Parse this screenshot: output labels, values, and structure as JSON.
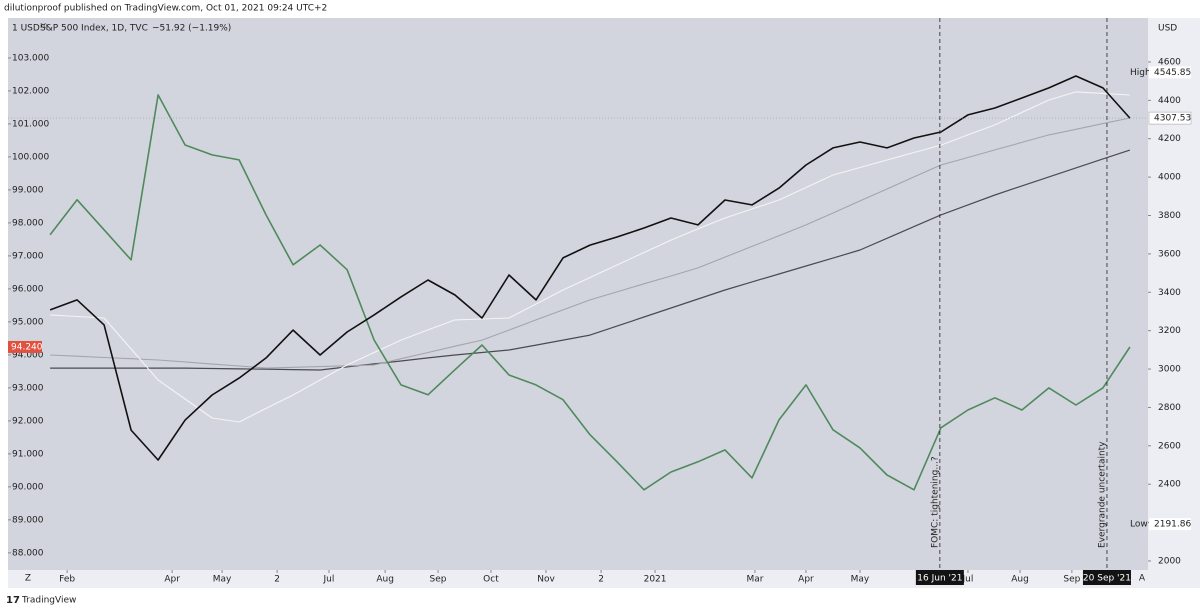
{
  "header": "dilutionproof published on TradingView.com, Oct 01, 2021 09:24 UTC+2",
  "footer": "TradingView",
  "legend": {
    "symbol": "S&P 500 Index, 1D, TVC",
    "change": "−51.92 (−1.19%)"
  },
  "left_unit": "1 USD¹⁰",
  "right_unit": "USD",
  "axis_buttons": {
    "left": "Z",
    "right": "A"
  },
  "chart_data": {
    "type": "line",
    "x": [
      0,
      1,
      2,
      3,
      4,
      5,
      6,
      7,
      8,
      9,
      10,
      11,
      12,
      13,
      14,
      15,
      16,
      17,
      18,
      19,
      20,
      21,
      22,
      23,
      24,
      25,
      26,
      27,
      28,
      29,
      30,
      31,
      32,
      33,
      34,
      35,
      36,
      37,
      38,
      39,
      40
    ],
    "xlim": [
      -1.56,
      40.67
    ],
    "xticks": [
      {
        "value": 0.63,
        "label": "Feb"
      },
      {
        "value": 4.52,
        "label": "Apr"
      },
      {
        "value": 6.37,
        "label": "May"
      },
      {
        "value": 8.41,
        "label": "2"
      },
      {
        "value": 10.33,
        "label": "Jul"
      },
      {
        "value": 12.41,
        "label": "Aug"
      },
      {
        "value": 14.37,
        "label": "Sep"
      },
      {
        "value": 16.33,
        "label": "Oct"
      },
      {
        "value": 18.37,
        "label": "Nov"
      },
      {
        "value": 20.41,
        "label": "2"
      },
      {
        "value": 22.41,
        "label": "2021"
      },
      {
        "value": 26.11,
        "label": "Mar"
      },
      {
        "value": 28.0,
        "label": "Apr"
      },
      {
        "value": 30.0,
        "label": "May"
      },
      {
        "value": 34.0,
        "label": "Jul"
      },
      {
        "value": 35.93,
        "label": "Aug"
      },
      {
        "value": 37.85,
        "label": "Sep"
      }
    ],
    "ylim": [
      87.48,
      104.21
    ],
    "yticks": [
      {
        "value": 88,
        "label": "88.000"
      },
      {
        "value": 89,
        "label": "89.000"
      },
      {
        "value": 90,
        "label": "90.000"
      },
      {
        "value": 91,
        "label": "91.000"
      },
      {
        "value": 92,
        "label": "92.000"
      },
      {
        "value": 93,
        "label": "93.000"
      },
      {
        "value": 94,
        "label": "94.000"
      },
      {
        "value": 95,
        "label": "95.000"
      },
      {
        "value": 96,
        "label": "96.000"
      },
      {
        "value": 97,
        "label": "97.000"
      },
      {
        "value": 98,
        "label": "98.000"
      },
      {
        "value": 99,
        "label": "99.000"
      },
      {
        "value": 100,
        "label": "100.000"
      },
      {
        "value": 101,
        "label": "101.000"
      },
      {
        "value": 102,
        "label": "102.000"
      },
      {
        "value": 103,
        "label": "103.000"
      }
    ],
    "y2lim": [
      1953,
      4829
    ],
    "y2ticks": [
      2000,
      2200,
      2400,
      2600,
      2800,
      3000,
      3200,
      3400,
      3600,
      3800,
      4000,
      4200,
      4400,
      4600
    ],
    "series": [
      {
        "axis": "y2",
        "color": "#111111",
        "width": 1.6,
        "values": [
          3308,
          3360,
          3230,
          2682,
          2526,
          2734,
          2865,
          2953,
          3058,
          3203,
          3073,
          3193,
          3282,
          3376,
          3464,
          3386,
          3266,
          3490,
          3360,
          3579,
          3646,
          3688,
          3735,
          3787,
          3751,
          3881,
          3855,
          3943,
          4063,
          4152,
          4183,
          4152,
          4204,
          4235,
          4324,
          4360,
          4412,
          4465,
          4527,
          4465,
          4307.53
        ]
      },
      {
        "axis": "y",
        "color": "#4f8a5c",
        "width": 1.6,
        "values": [
          97.64,
          98.7,
          97.79,
          96.88,
          101.88,
          100.36,
          100.06,
          99.91,
          98.24,
          96.73,
          97.33,
          96.58,
          94.45,
          93.09,
          92.79,
          93.55,
          94.3,
          93.39,
          93.09,
          92.64,
          91.58,
          90.76,
          89.91,
          90.45,
          90.76,
          91.12,
          90.27,
          92.03,
          93.09,
          91.73,
          91.18,
          90.36,
          89.91,
          91.79,
          92.33,
          92.7,
          92.33,
          93,
          92.48,
          93,
          94.24
        ],
        "value_labels": [
          null,
          null,
          null,
          null,
          null,
          null,
          null,
          null,
          null,
          null,
          null,
          null,
          null,
          null,
          null,
          null,
          null,
          null,
          null,
          null,
          null,
          null,
          null,
          null,
          null,
          null,
          null,
          null,
          null,
          null,
          null,
          null,
          null,
          null,
          null,
          null,
          null,
          null,
          null,
          null,
          "94.240"
        ]
      },
      {
        "axis": "y2",
        "color": "#f4f4f4",
        "width": 1.1,
        "values": [
          3282,
          3274,
          3266,
          3105,
          2943,
          2844,
          2745,
          2724,
          2795,
          2865,
          2943,
          3021,
          3086,
          3151,
          3204,
          3256,
          3261,
          3266,
          3339,
          3412,
          3477,
          3542,
          3607,
          3672,
          3730,
          3787,
          3834,
          3881,
          3946,
          4011,
          4050,
          4089,
          4128,
          4167,
          4220,
          4272,
          4337,
          4402,
          4444,
          4436,
          4428
        ]
      },
      {
        "axis": "y2",
        "color": "#a3a5ab",
        "width": 1.1,
        "values": [
          3073,
          3067,
          3060,
          3054,
          3047,
          3037,
          3026,
          3016,
          3005,
          3009,
          3013,
          3017,
          3021,
          3054,
          3086,
          3119,
          3151,
          3203,
          3256,
          3308,
          3360,
          3402,
          3444,
          3485,
          3527,
          3583,
          3639,
          3695,
          3751,
          3813,
          3876,
          3938,
          4001,
          4063,
          4102,
          4142,
          4181,
          4220,
          4249,
          4279,
          4308
        ]
      },
      {
        "axis": "y2",
        "color": "#4a4b50",
        "width": 1.2,
        "values": [
          3005,
          3005,
          3005,
          3005,
          3005,
          3005,
          3003,
          3001,
          2999,
          2997,
          2995,
          3011,
          3027,
          3042,
          3058,
          3073,
          3086,
          3099,
          3125,
          3151,
          3177,
          3224,
          3271,
          3318,
          3365,
          3412,
          3454,
          3495,
          3537,
          3578,
          3620,
          3681,
          3742,
          3803,
          3855,
          3907,
          3954,
          4001,
          4048,
          4095,
          4141
        ]
      }
    ],
    "high": {
      "label": "High",
      "value": 4545.85
    },
    "low": {
      "label": "Low",
      "value": 2191.86
    },
    "annotations": [
      {
        "x": 32.96,
        "label": "16 Jun '21",
        "text": "FOMC: tightening...?"
      },
      {
        "x": 39.15,
        "label": "20 Sep '21",
        "text": "Evergrande uncertainty"
      }
    ]
  }
}
